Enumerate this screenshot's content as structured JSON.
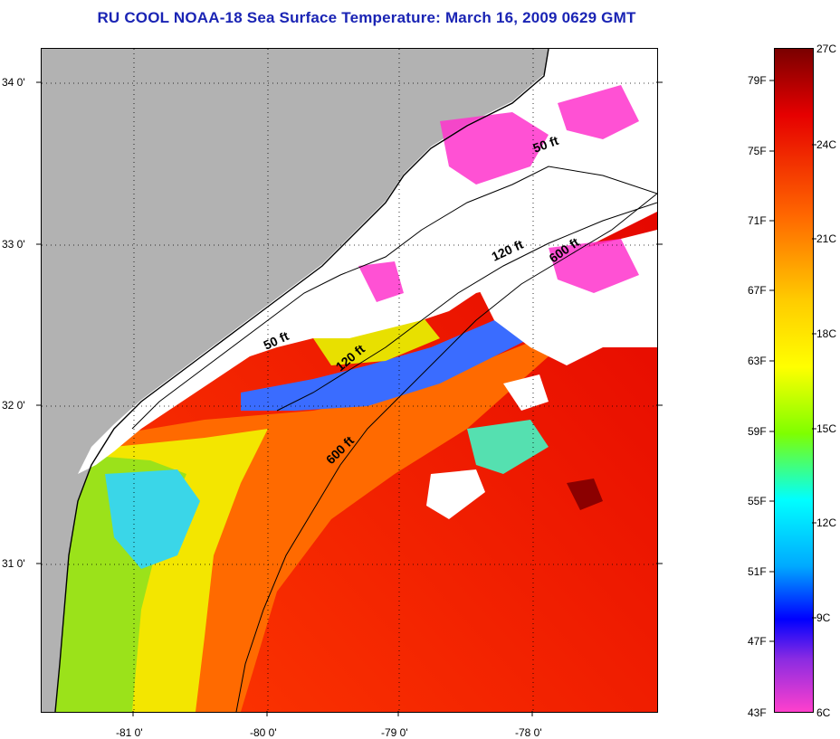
{
  "title": "RU COOL  NOAA-18  Sea Surface Temperature:  March 16, 2009 0629 GMT",
  "map": {
    "latitude_labels": [
      "34 0'",
      "33 0'",
      "32 0'",
      "31 0'"
    ],
    "longitude_labels": [
      "-81 0'",
      "-80 0'",
      "-79 0'",
      "-78 0'"
    ],
    "contour_labels": [
      "50 ft",
      "120 ft",
      "600 ft",
      "50 ft",
      "120 ft",
      "600 ft"
    ],
    "land_color": "#b2b2b2",
    "cloud_mask_color": "#ffffff",
    "coastline_color": "#000000"
  },
  "colorbar": {
    "fahrenheit_labels": [
      "79F",
      "75F",
      "71F",
      "67F",
      "63F",
      "59F",
      "55F",
      "51F",
      "47F",
      "43F"
    ],
    "celsius_labels": [
      "27C",
      "24C",
      "21C",
      "18C",
      "15C",
      "12C",
      "9C",
      "6C"
    ],
    "color_stops": [
      "#8b0000",
      "#ff0000",
      "#ff8c00",
      "#ffff00",
      "#7fff00",
      "#00ffff",
      "#0080ff",
      "#0000ff",
      "#9400d3",
      "#ff1493",
      "#ff44cc"
    ]
  }
}
